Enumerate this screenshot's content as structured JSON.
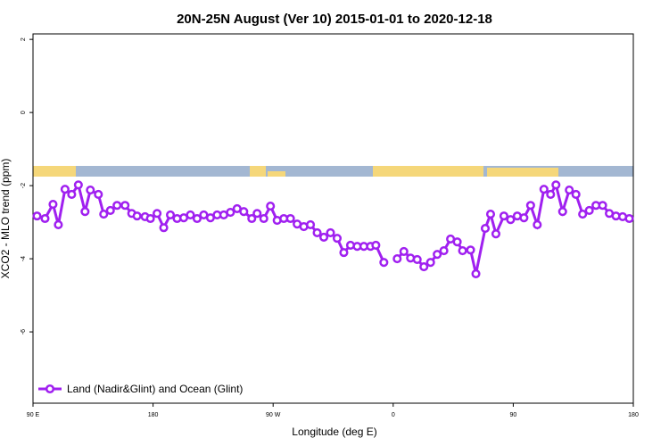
{
  "chart_data": {
    "type": "line",
    "title": "20N-25N August (Ver 10)   2015-01-01 to 2020-12-18",
    "x_label": "Longitude (deg E)",
    "y_label": "XCO2 - MLO trend (ppm)",
    "xlim": [
      90,
      540
    ],
    "ylim": [
      -7.95,
      2.15
    ],
    "xticks": [
      {
        "value": 90,
        "label": "90 E"
      },
      180,
      {
        "value": 270,
        "label": "90 W"
      },
      {
        "value": 360,
        "label": "0"
      },
      {
        "value": 450,
        "label": "90"
      },
      {
        "value": 540,
        "label": "180"
      }
    ],
    "yticks": [
      2,
      0,
      -2,
      -4,
      -6
    ],
    "legend": "bottom-left",
    "x": [
      93,
      99,
      105,
      109,
      114,
      119,
      124,
      129,
      133,
      139,
      143,
      148,
      153,
      159,
      164,
      168,
      174,
      178,
      183,
      188,
      193,
      198,
      203,
      208,
      213,
      218,
      223,
      228,
      233,
      238,
      243,
      248,
      254,
      258,
      263,
      268,
      273,
      278,
      283,
      288,
      293,
      298,
      303,
      308,
      313,
      318,
      323,
      328,
      333,
      338,
      343,
      347,
      353,
      358,
      363,
      368,
      373,
      378,
      383,
      388,
      393,
      398,
      403,
      408,
      412,
      418,
      422,
      429,
      433,
      437,
      443,
      448,
      453,
      458,
      463,
      468,
      473,
      478,
      482,
      487,
      492,
      497,
      502,
      507,
      512,
      517,
      522,
      527,
      532,
      537
    ],
    "series": [
      {
        "name": "Land (Nadir&Glint) and Ocean (Glint)",
        "color": "#a020f0",
        "values": [
          -2.83,
          -2.9,
          -2.51,
          -3.07,
          -2.1,
          -2.24,
          -1.98,
          -2.71,
          -2.12,
          -2.24,
          -2.78,
          -2.68,
          -2.54,
          -2.54,
          -2.76,
          -2.83,
          -2.85,
          -2.9,
          -2.76,
          -3.15,
          -2.8,
          -2.9,
          -2.88,
          -2.8,
          -2.9,
          -2.8,
          -2.88,
          -2.8,
          -2.8,
          -2.73,
          -2.63,
          -2.71,
          -2.9,
          -2.76,
          -2.9,
          -2.56,
          -2.95,
          -2.9,
          -2.9,
          -3.05,
          -3.12,
          -3.07,
          -3.29,
          -3.41,
          -3.29,
          -3.44,
          -3.83,
          -3.63,
          -3.66,
          -3.66,
          -3.66,
          -3.63,
          -4.1,
          null,
          -4.0,
          -3.8,
          -3.98,
          -4.02,
          -4.22,
          -4.1,
          -3.88,
          -3.78,
          -3.46,
          -3.54,
          -3.78,
          -3.76,
          -4.41,
          -3.17,
          -2.78,
          -3.32,
          -2.83,
          -2.93,
          -2.83,
          -2.88,
          -2.54,
          -3.07,
          -2.1,
          -2.24,
          -1.98,
          -2.71,
          -2.12,
          -2.24,
          -2.78,
          -2.68,
          -2.54,
          -2.54,
          -2.76,
          -2.83,
          -2.85,
          -2.9
        ]
      }
    ]
  }
}
